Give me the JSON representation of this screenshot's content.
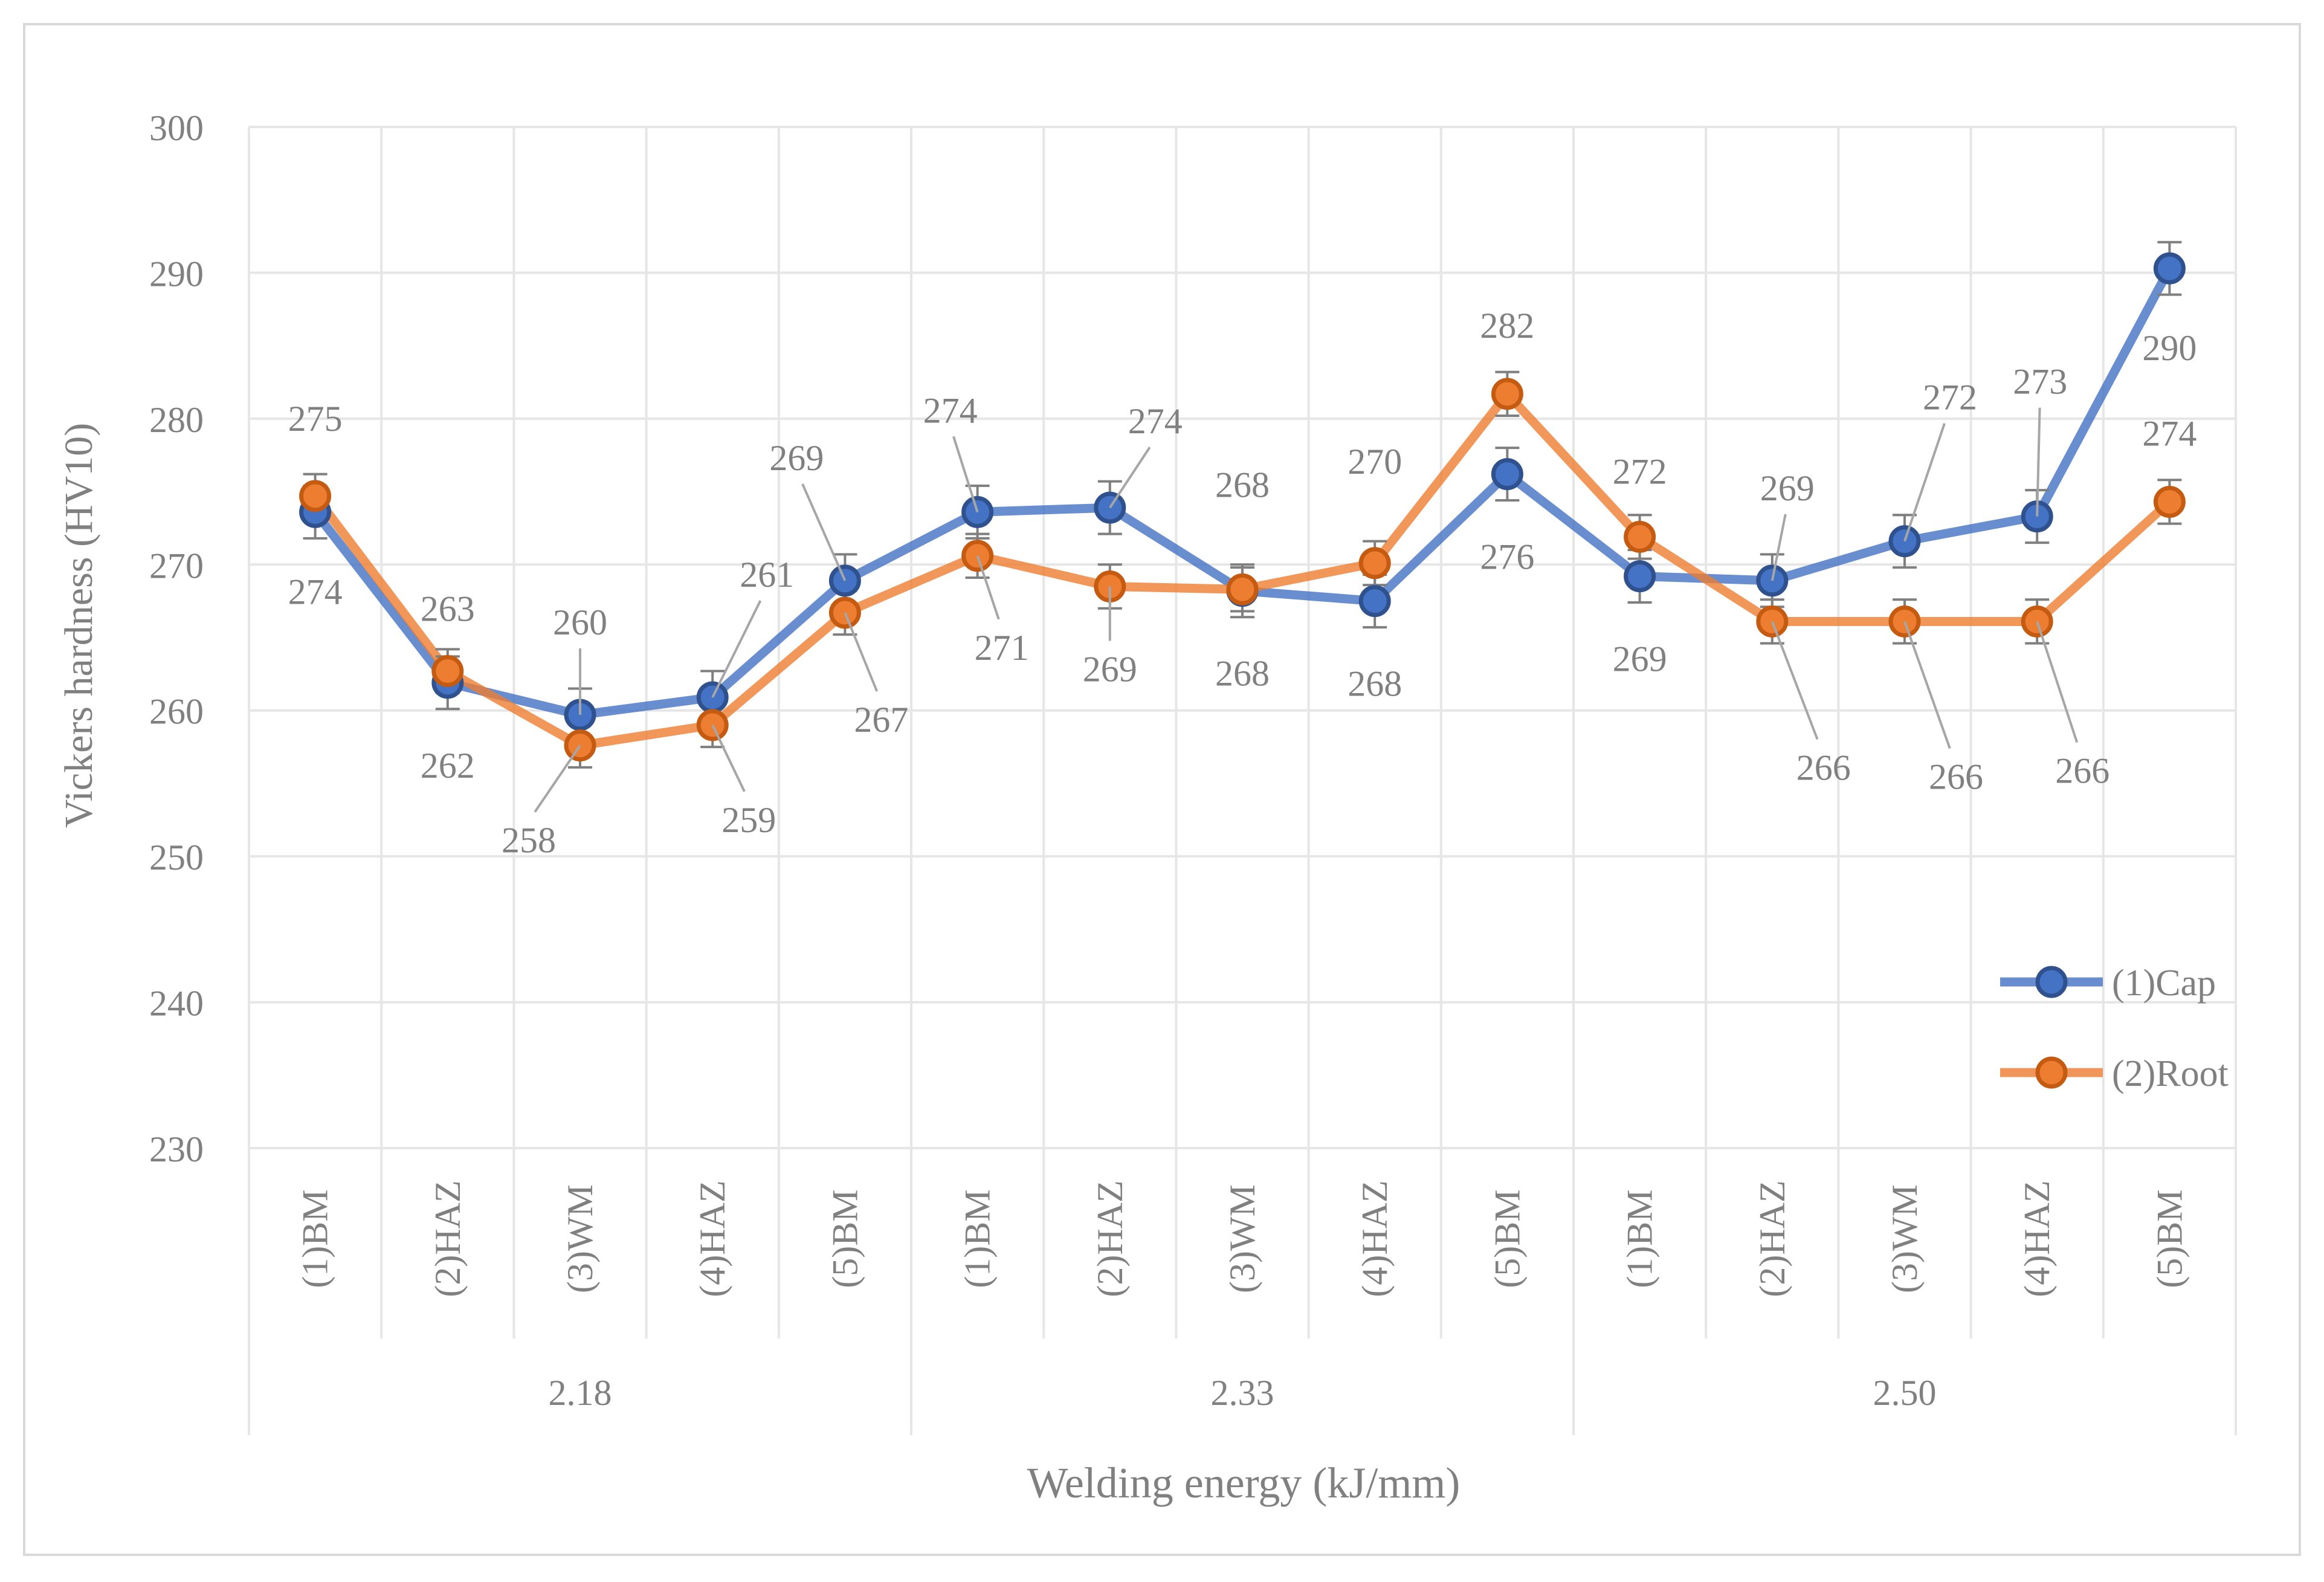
{
  "chart_data": {
    "type": "line",
    "title": "",
    "xlabel": "Welding energy (kJ/mm)",
    "ylabel": "Vickers hardness (HV10)",
    "ylim": [
      230,
      300
    ],
    "yticks": [
      230,
      240,
      250,
      260,
      270,
      280,
      290,
      300
    ],
    "grid": true,
    "legend_position": "right",
    "groups": [
      {
        "label": "2.18",
        "categories": [
          "(1)BM",
          "(2)HAZ",
          "(3)WM",
          "(4)HAZ",
          "(5)BM"
        ]
      },
      {
        "label": "2.33",
        "categories": [
          "(1)BM",
          "(2)HAZ",
          "(3)WM",
          "(4)HAZ",
          "(5)BM"
        ]
      },
      {
        "label": "2.50",
        "categories": [
          "(1)BM",
          "(2)HAZ",
          "(3)WM",
          "(4)HAZ",
          "(5)BM"
        ]
      }
    ],
    "series": [
      {
        "name": "(1)Cap",
        "color": "#4472C4",
        "values": [
          273.6,
          261.9,
          259.7,
          260.9,
          268.9,
          273.6,
          273.9,
          268.2,
          267.5,
          276.2,
          269.2,
          268.9,
          271.6,
          273.3,
          290.3
        ],
        "error": [
          1.8,
          1.8,
          1.8,
          1.8,
          1.8,
          1.8,
          1.8,
          1.8,
          1.8,
          1.8,
          1.8,
          1.8,
          1.8,
          1.8,
          1.8
        ],
        "labels": [
          "274",
          "262",
          "260",
          "261",
          "269",
          "274",
          "274",
          "268",
          "268",
          "276",
          "269",
          "269",
          "272",
          "273",
          "290"
        ]
      },
      {
        "name": "(2)Root",
        "color": "#ED7D31",
        "values": [
          274.7,
          262.7,
          257.6,
          259.0,
          266.7,
          270.6,
          268.5,
          268.3,
          270.1,
          281.7,
          271.9,
          266.1,
          266.1,
          266.1,
          274.3
        ],
        "error": [
          1.5,
          1.5,
          1.5,
          1.5,
          1.5,
          1.5,
          1.5,
          1.5,
          1.5,
          1.5,
          1.5,
          1.5,
          1.5,
          1.5,
          1.5
        ],
        "labels": [
          "275",
          "263",
          "258",
          "259",
          "267",
          "271",
          "269",
          "268",
          "270",
          "282",
          "272",
          "266",
          "266",
          "266",
          "274"
        ]
      }
    ]
  }
}
